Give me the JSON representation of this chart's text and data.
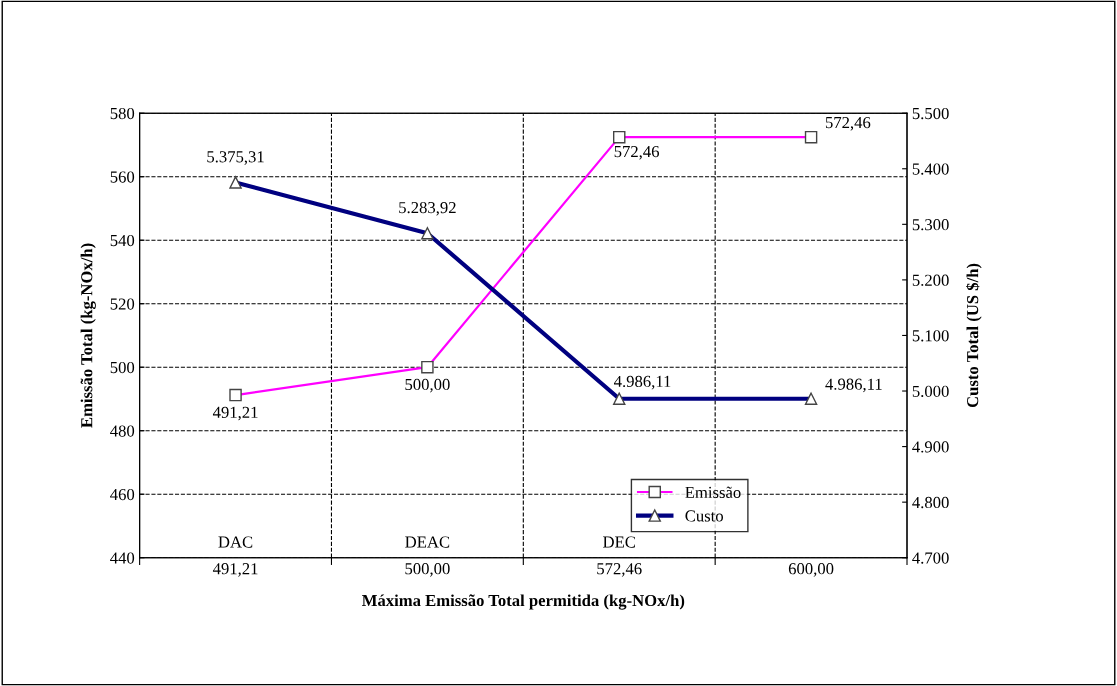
{
  "chart_data": {
    "type": "line",
    "xlabel": "Máxima Emissão Total permitida (kg-NOx/h)",
    "ylabel": "Emissão Total (kg-NOx/h)",
    "y2label": "Custo Total (US $/h)",
    "categories": [
      "491,21",
      "500,00",
      "572,46",
      "600,00"
    ],
    "series": [
      {
        "name": "Emissão",
        "color": "#ff00ff",
        "marker": "square",
        "values": [
          491.21,
          500.0,
          572.46,
          572.46
        ],
        "value_labels": [
          "491,21",
          "500,00",
          "572,46",
          "572,46"
        ]
      },
      {
        "name": "Custo",
        "color": "#000080",
        "marker": "triangle",
        "axis": "y2",
        "values": [
          5375.31,
          5283.92,
          4986.11,
          4986.11
        ],
        "value_labels": [
          "5.375,31",
          "5.283,92",
          "4.986,11",
          "4.986,11"
        ]
      }
    ],
    "ylim": [
      440,
      580
    ],
    "yticks": [
      440,
      460,
      480,
      500,
      520,
      540,
      560,
      580
    ],
    "y2lim": [
      4700,
      5500
    ],
    "y2ticks": [
      {
        "value": 4700,
        "label": "4.700"
      },
      {
        "value": 4800,
        "label": "4.800"
      },
      {
        "value": 4900,
        "label": "4.900"
      },
      {
        "value": 5000,
        "label": "5.000"
      },
      {
        "value": 5100,
        "label": "5.100"
      },
      {
        "value": 5200,
        "label": "5.200"
      },
      {
        "value": 5300,
        "label": "5.300"
      },
      {
        "value": 5400,
        "label": "5.400"
      },
      {
        "value": 5500,
        "label": "5.500"
      }
    ],
    "annotations": [
      "DAC",
      "DEAC",
      "DEC"
    ],
    "grid": true,
    "legend": "bottom right",
    "line_style": "solid"
  }
}
